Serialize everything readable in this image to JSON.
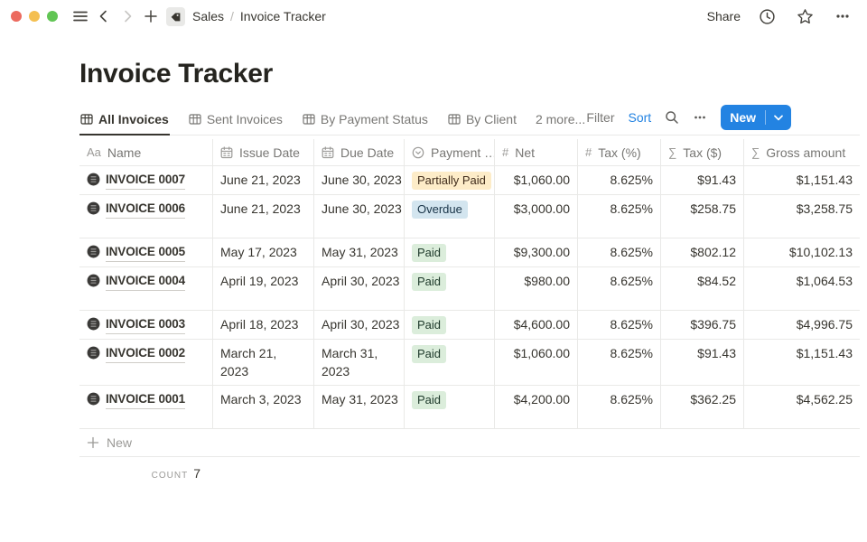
{
  "topbar": {
    "breadcrumb": {
      "section": "Sales",
      "separator": "/",
      "page": "Invoice Tracker"
    },
    "share_label": "Share"
  },
  "page": {
    "title": "Invoice Tracker"
  },
  "view_bar": {
    "tabs": [
      {
        "label": "All Invoices",
        "active": true
      },
      {
        "label": "Sent Invoices",
        "active": false
      },
      {
        "label": "By Payment Status",
        "active": false
      },
      {
        "label": "By Client",
        "active": false
      }
    ],
    "more_label": "2 more...",
    "filter_label": "Filter",
    "sort_label": "Sort",
    "new_button_label": "New"
  },
  "table": {
    "icon_glyphs": {
      "title-icon": "Aa",
      "number-icon": "#",
      "formula-icon": "∑"
    },
    "columns": [
      {
        "label": "Name",
        "icon": "title-icon"
      },
      {
        "label": "Issue Date",
        "icon": "calendar-icon"
      },
      {
        "label": "Due Date",
        "icon": "calendar-icon"
      },
      {
        "label": "Payment …",
        "icon": "select-icon"
      },
      {
        "label": "Net",
        "icon": "number-icon",
        "align": "right"
      },
      {
        "label": "Tax (%)",
        "icon": "number-icon",
        "align": "right"
      },
      {
        "label": "Tax ($)",
        "icon": "formula-icon",
        "align": "right"
      },
      {
        "label": "Gross amount",
        "icon": "formula-icon",
        "align": "right"
      }
    ],
    "rows": [
      {
        "name": "INVOICE 0007",
        "issue_date": "June 21, 2023",
        "due_date": "June 30, 2023",
        "payment_status": "Partially Paid",
        "payment_color": "yellow",
        "net": "$1,060.00",
        "tax_pct": "8.625%",
        "tax_usd": "$91.43",
        "gross": "$1,151.43",
        "tall": false
      },
      {
        "name": "INVOICE 0006",
        "issue_date": "June 21, 2023",
        "due_date": "June 30, 2023",
        "payment_status": "Overdue",
        "payment_color": "blue",
        "net": "$3,000.00",
        "tax_pct": "8.625%",
        "tax_usd": "$258.75",
        "gross": "$3,258.75",
        "tall": true
      },
      {
        "name": "INVOICE 0005",
        "issue_date": "May 17, 2023",
        "due_date": "May 31, 2023",
        "payment_status": "Paid",
        "payment_color": "green",
        "net": "$9,300.00",
        "tax_pct": "8.625%",
        "tax_usd": "$802.12",
        "gross": "$10,102.13",
        "tall": false
      },
      {
        "name": "INVOICE 0004",
        "issue_date": "April 19, 2023",
        "due_date": "April 30, 2023",
        "payment_status": "Paid",
        "payment_color": "green",
        "net": "$980.00",
        "tax_pct": "8.625%",
        "tax_usd": "$84.52",
        "gross": "$1,064.53",
        "tall": true
      },
      {
        "name": "INVOICE 0003",
        "issue_date": "April 18, 2023",
        "due_date": "April 30, 2023",
        "payment_status": "Paid",
        "payment_color": "green",
        "net": "$4,600.00",
        "tax_pct": "8.625%",
        "tax_usd": "$396.75",
        "gross": "$4,996.75",
        "tall": false
      },
      {
        "name": "INVOICE 0002",
        "issue_date": "March 21, 2023",
        "due_date": "March 31, 2023",
        "payment_status": "Paid",
        "payment_color": "green",
        "net": "$1,060.00",
        "tax_pct": "8.625%",
        "tax_usd": "$91.43",
        "gross": "$1,151.43",
        "tall": true
      },
      {
        "name": "INVOICE 0001",
        "issue_date": "March 3, 2023",
        "due_date": "May 31, 2023",
        "payment_status": "Paid",
        "payment_color": "green",
        "net": "$4,200.00",
        "tax_pct": "8.625%",
        "tax_usd": "$362.25",
        "gross": "$4,562.25",
        "tall": true
      }
    ],
    "new_row_label": "New",
    "count_label": "COUNT",
    "count_value": "7"
  },
  "colors": {
    "accent_blue": "#2383e2",
    "badge_yellow_bg": "#fdecc8",
    "badge_blue_bg": "#d3e5ef",
    "badge_green_bg": "#dbeddb",
    "border": "#e9e9e7",
    "text_dark": "#37352f",
    "text_gray": "#787774"
  }
}
